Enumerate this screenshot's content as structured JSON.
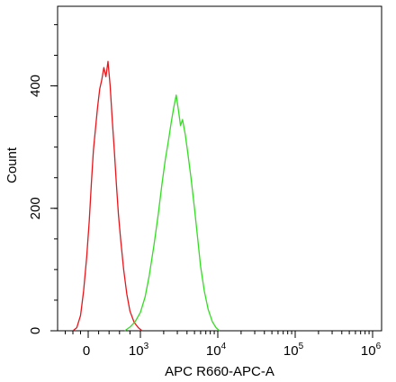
{
  "chart_data": {
    "type": "line",
    "title": "",
    "xlabel": "APC R660-APC-A",
    "ylabel": "Count",
    "x_scale": "biexponential",
    "xlim": [
      -400,
      1000000
    ],
    "ylim": [
      0,
      530
    ],
    "grid": false,
    "legend": "none",
    "x_ticks": [
      {
        "value": 0,
        "base": "0",
        "exponent": ""
      },
      {
        "value": 1000,
        "base": "10",
        "exponent": "3"
      },
      {
        "value": 10000,
        "base": "10",
        "exponent": "4"
      },
      {
        "value": 100000,
        "base": "10",
        "exponent": "5"
      },
      {
        "value": 1000000,
        "base": "10",
        "exponent": "6"
      }
    ],
    "y_ticks": [
      {
        "value": 0,
        "label": "0"
      },
      {
        "value": 200,
        "label": "200"
      },
      {
        "value": 400,
        "label": "400"
      }
    ],
    "series": [
      {
        "color": "#e8161b",
        "x": [
          -200,
          -150,
          -100,
          -60,
          -20,
          20,
          60,
          100,
          140,
          180,
          220,
          260,
          300,
          340,
          380,
          420,
          460,
          500,
          540,
          580,
          620,
          680,
          740,
          800,
          880,
          960,
          1050
        ],
        "y": [
          0,
          5,
          25,
          65,
          120,
          180,
          240,
          295,
          330,
          365,
          395,
          410,
          430,
          415,
          440,
          400,
          345,
          295,
          240,
          190,
          150,
          100,
          60,
          32,
          14,
          5,
          0
        ]
      },
      {
        "color": "#33dd22",
        "x": [
          700,
          800,
          900,
          1000,
          1150,
          1300,
          1500,
          1700,
          1900,
          2100,
          2300,
          2500,
          2700,
          2900,
          3100,
          3300,
          3500,
          3800,
          4100,
          4500,
          5000,
          5500,
          6000,
          6700,
          7500,
          8500,
          9500,
          10500
        ],
        "y": [
          0,
          6,
          15,
          30,
          55,
          90,
          140,
          190,
          240,
          280,
          310,
          340,
          365,
          385,
          360,
          335,
          345,
          320,
          290,
          250,
          200,
          150,
          105,
          65,
          35,
          15,
          5,
          0
        ]
      }
    ]
  }
}
